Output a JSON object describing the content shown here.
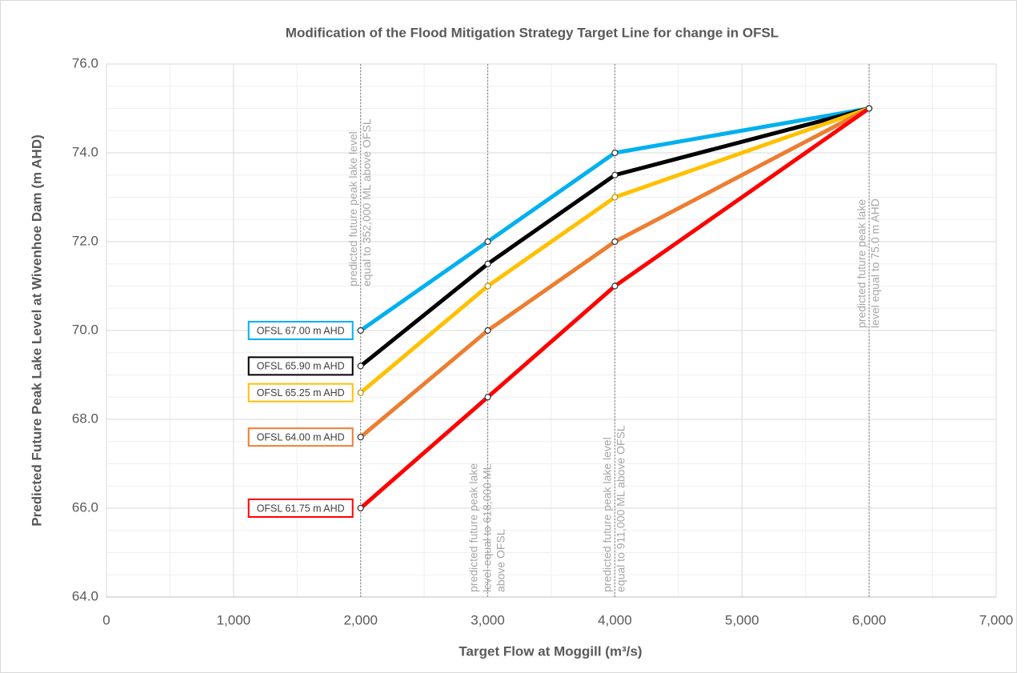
{
  "chart_data": {
    "type": "line",
    "title": "Modification of the Flood Mitigation Strategy Target Line for change in OFSL",
    "x_label": "Target Flow at Moggill (m³/s)",
    "y_label": "Predicted Future Peak Lake Level at Wivenhoe Dam (m AHD)",
    "x": [
      2000,
      3000,
      4000,
      6000
    ],
    "series": [
      {
        "name": "OFSL 67.00 m AHD",
        "color": "#00b0f0",
        "values": [
          70,
          72,
          74,
          75
        ]
      },
      {
        "name": "OFSL 65.90 m AHD",
        "color": "#000000",
        "values": [
          69.2,
          71.5,
          73.5,
          75
        ]
      },
      {
        "name": "OFSL 65.25 m AHD",
        "color": "#ffc000",
        "values": [
          68.6,
          71,
          73,
          75
        ]
      },
      {
        "name": "OFSL 64.00 m AHD",
        "color": "#ed7d31",
        "values": [
          67.6,
          70,
          72,
          75
        ]
      },
      {
        "name": "OFSL 61.75 m AHD",
        "color": "#ff0000",
        "values": [
          66,
          68.5,
          71,
          75
        ]
      }
    ],
    "xlim": [
      0,
      7000
    ],
    "xticks": [
      0,
      {
        "value": 1000,
        "label": "1,000"
      },
      {
        "value": 2000,
        "label": "2,000"
      },
      {
        "value": 3000,
        "label": "3,000"
      },
      {
        "value": 4000,
        "label": "4,000"
      },
      {
        "value": 5000,
        "label": "5,000"
      },
      {
        "value": 6000,
        "label": "6,000"
      },
      {
        "value": 7000,
        "label": "7,000"
      }
    ],
    "ylim": [
      64,
      76
    ],
    "yticks": [
      {
        "value": 64,
        "label": "64.0"
      },
      {
        "value": 66,
        "label": "66.0"
      },
      {
        "value": 68,
        "label": "68.0"
      },
      {
        "value": 70,
        "label": "70.0"
      },
      {
        "value": 72,
        "label": "72.0"
      },
      {
        "value": 74,
        "label": "74.0"
      },
      {
        "value": 76,
        "label": "76.0"
      }
    ],
    "grid": true,
    "annotations": [
      {
        "x": 2000,
        "lines": [
          "predicted future peak lake level",
          "equal to 352,000 ML above OFSL"
        ]
      },
      {
        "x": 3000,
        "lines": [
          "predicted future peak lake",
          "level equal to 618,000 ML",
          "above OFSL"
        ]
      },
      {
        "x": 4000,
        "lines": [
          "predicted future peak lake level",
          "equal to 911,000 ML above OFSL"
        ]
      },
      {
        "x": 6000,
        "lines": [
          "predicted future peak lake",
          "level equal to 75.0 m AHD"
        ]
      }
    ]
  }
}
